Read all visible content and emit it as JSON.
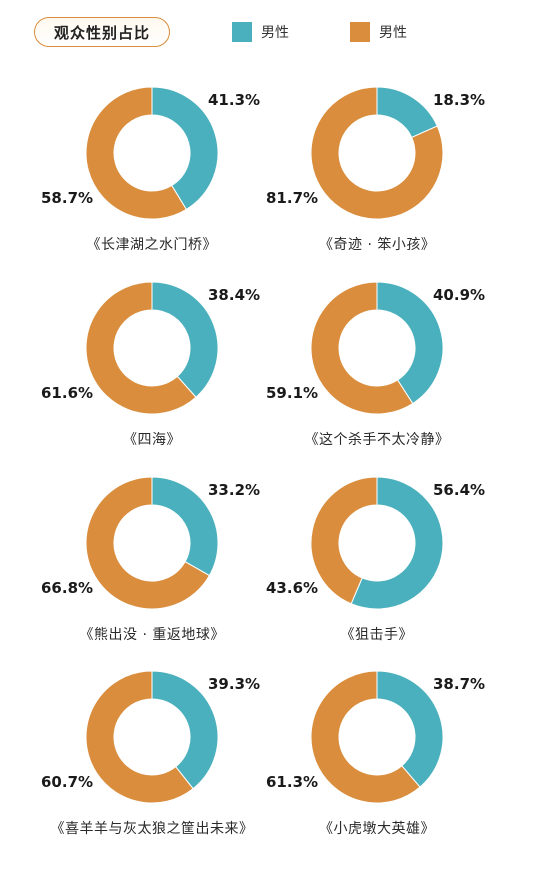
{
  "header": {
    "title": "观众性别占比",
    "legend": [
      {
        "label": "男性",
        "color": "#4bb0bd"
      },
      {
        "label": "男性",
        "color": "#d98d3d"
      }
    ]
  },
  "chart_data": [
    {
      "type": "pie",
      "title": "《长津湖之水门桥》",
      "labels": [
        "41.3%",
        "58.7%"
      ],
      "values": [
        41.3,
        58.7
      ],
      "colors": [
        "#4bb0bd",
        "#d98d3d"
      ]
    },
    {
      "type": "pie",
      "title": "《奇迹 · 笨小孩》",
      "labels": [
        "18.3%",
        "81.7%"
      ],
      "values": [
        18.3,
        81.7
      ],
      "colors": [
        "#4bb0bd",
        "#d98d3d"
      ]
    },
    {
      "type": "pie",
      "title": "《四海》",
      "labels": [
        "38.4%",
        "61.6%"
      ],
      "values": [
        38.4,
        61.6
      ],
      "colors": [
        "#4bb0bd",
        "#d98d3d"
      ]
    },
    {
      "type": "pie",
      "title": "《这个杀手不太冷静》",
      "labels": [
        "40.9%",
        "59.1%"
      ],
      "values": [
        40.9,
        59.1
      ],
      "colors": [
        "#4bb0bd",
        "#d98d3d"
      ]
    },
    {
      "type": "pie",
      "title": "《熊出没 · 重返地球》",
      "labels": [
        "33.2%",
        "66.8%"
      ],
      "values": [
        33.2,
        66.8
      ],
      "colors": [
        "#4bb0bd",
        "#d98d3d"
      ]
    },
    {
      "type": "pie",
      "title": "《狙击手》",
      "labels": [
        "56.4%",
        "43.6%"
      ],
      "values": [
        56.4,
        43.6
      ],
      "colors": [
        "#4bb0bd",
        "#d98d3d"
      ]
    },
    {
      "type": "pie",
      "title": "《喜羊羊与灰太狼之筐出未来》",
      "labels": [
        "39.3%",
        "60.7%"
      ],
      "values": [
        39.3,
        60.7
      ],
      "colors": [
        "#4bb0bd",
        "#d98d3d"
      ]
    },
    {
      "type": "pie",
      "title": "《小虎墩大英雄》",
      "labels": [
        "38.7%",
        "61.3%"
      ],
      "values": [
        38.7,
        61.3
      ],
      "colors": [
        "#4bb0bd",
        "#d98d3d"
      ]
    }
  ]
}
